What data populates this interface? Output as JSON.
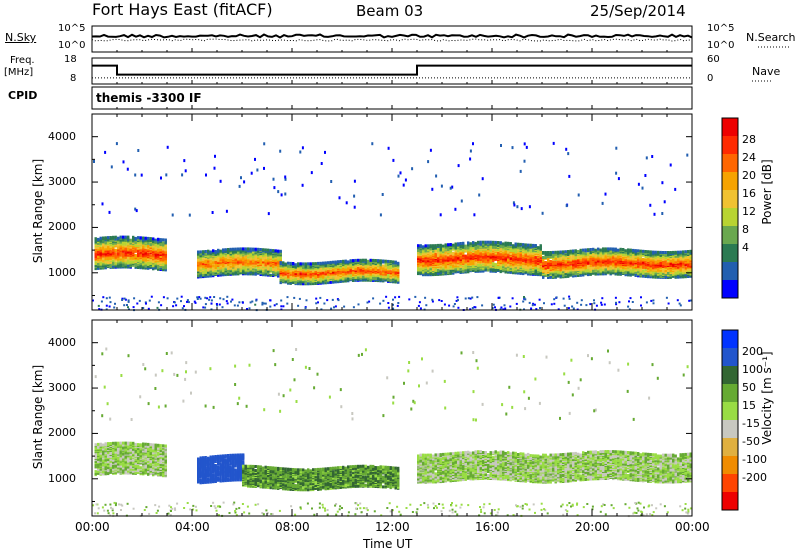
{
  "header": {
    "title": "Fort Hays East (fitACF)",
    "beam": "Beam 03",
    "date": "25/Sep/2014",
    "cpid_label": "CPID",
    "cpid_value": "themis -3300 IF"
  },
  "status_panels": {
    "nsky_label": "N.Sky",
    "nsky_ticks": [
      "10^5",
      "10^0"
    ],
    "nsearch_label": "N.Search",
    "nsearch_ticks": [
      "10^5",
      "10^0"
    ],
    "freq_label": "Freq.",
    "freq_unit": "[MHz]",
    "freq_ticks": [
      18,
      8
    ],
    "nave_label": "Nave",
    "nave_ticks": [
      60,
      0
    ],
    "freq_steps": [
      {
        "start_h": 0.0,
        "end_h": 1.0,
        "mhz": 16
      },
      {
        "start_h": 1.0,
        "end_h": 13.0,
        "mhz": 11
      },
      {
        "start_h": 13.0,
        "end_h": 24.0,
        "mhz": 16
      }
    ],
    "nave_level": 7
  },
  "x_axis": {
    "label": "Time UT",
    "ticks": [
      "00:00",
      "04:00",
      "08:00",
      "12:00",
      "16:00",
      "20:00",
      "00:00"
    ],
    "range_h": [
      0,
      24
    ]
  },
  "colors": {
    "power_scale": [
      "#0000ff",
      "#225fb0",
      "#2b7a52",
      "#6aa84f",
      "#b8d432",
      "#f1c232",
      "#f6a300",
      "#ff6600",
      "#ff2a00",
      "#ee0000"
    ],
    "velocity_scale": [
      "#0033ff",
      "#2255cc",
      "#336633",
      "#66aa33",
      "#99dd44",
      "#c8c8c0",
      "#e0b040",
      "#f08c00",
      "#ff4400",
      "#ee0000"
    ]
  },
  "chart_data": [
    {
      "type": "heatmap",
      "name": "power",
      "ylabel": "Slant Range [km]",
      "ylim": [
        180,
        4500
      ],
      "yticks": [
        1000,
        2000,
        3000,
        4000
      ],
      "xlim": [
        0,
        24
      ],
      "colorbar": {
        "label": "Power [dB]",
        "ticks": [
          4,
          8,
          12,
          16,
          20,
          24,
          28
        ],
        "range": [
          0,
          30
        ]
      },
      "segments": [
        {
          "start_h": 0.1,
          "end_h": 3.0,
          "center_km": 1450,
          "width_km": 330,
          "peak_db": 28
        },
        {
          "start_h": 4.2,
          "end_h": 7.5,
          "center_km": 1250,
          "width_km": 280,
          "peak_db": 24
        },
        {
          "start_h": 7.5,
          "end_h": 12.2,
          "center_km": 1050,
          "width_km": 220,
          "peak_db": 26
        },
        {
          "start_h": 13.0,
          "end_h": 18.0,
          "center_km": 1350,
          "width_km": 320,
          "peak_db": 28
        },
        {
          "start_h": 18.0,
          "end_h": 24.0,
          "center_km": 1250,
          "width_km": 280,
          "peak_db": 28
        }
      ]
    },
    {
      "type": "heatmap",
      "name": "velocity",
      "ylabel": "Slant Range [km]",
      "ylim": [
        180,
        4500
      ],
      "yticks": [
        1000,
        2000,
        3000,
        4000
      ],
      "xlim": [
        0,
        24
      ],
      "colorbar": {
        "label": "Velocity [m s⁻¹]",
        "ticks": [
          200,
          100,
          50,
          15,
          -15,
          -50,
          -100,
          -200
        ],
        "range": [
          -250,
          250
        ]
      },
      "segments": [
        {
          "start_h": 0.1,
          "end_h": 3.0,
          "center_km": 1450,
          "width_km": 330,
          "mean_ms": 0
        },
        {
          "start_h": 4.2,
          "end_h": 6.0,
          "center_km": 1250,
          "width_km": 280,
          "mean_ms": 150
        },
        {
          "start_h": 6.0,
          "end_h": 12.2,
          "center_km": 1050,
          "width_km": 220,
          "mean_ms": 45
        },
        {
          "start_h": 13.0,
          "end_h": 24.0,
          "center_km": 1300,
          "width_km": 300,
          "mean_ms": 0
        }
      ]
    }
  ]
}
